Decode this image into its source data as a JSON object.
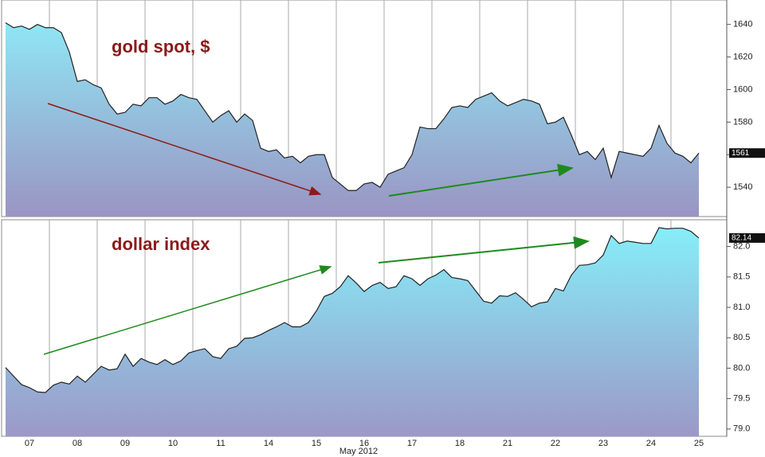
{
  "chart_data": {
    "type": "area",
    "xlabel": "May 2012",
    "categories": [
      null,
      null,
      null,
      "07",
      null,
      null,
      null,
      null,
      null,
      "08",
      null,
      null,
      null,
      null,
      null,
      "09",
      null,
      null,
      null,
      null,
      null,
      "10",
      null,
      null,
      null,
      null,
      null,
      "11",
      null,
      null,
      null,
      null,
      null,
      "14",
      null,
      null,
      null,
      null,
      null,
      "15",
      null,
      null,
      null,
      null,
      null,
      "16",
      null,
      null,
      null,
      null,
      null,
      "17",
      null,
      null,
      null,
      null,
      null,
      "18",
      null,
      null,
      null,
      null,
      null,
      "21",
      null,
      null,
      null,
      null,
      null,
      "22",
      null,
      null,
      null,
      null,
      null,
      "23",
      null,
      null,
      null,
      null,
      null,
      "24",
      null,
      null,
      null,
      null,
      null,
      "25",
      null,
      null
    ],
    "series": [
      {
        "name": "gold spot, $",
        "axis": "y",
        "color": "#222222",
        "last_label": "1561",
        "values": [
          1641,
          1638,
          1639,
          1637,
          1640,
          1638,
          1638,
          1635,
          1623,
          1605,
          1606,
          1603,
          1601,
          1591,
          1585,
          1586,
          1591,
          1590,
          1595,
          1595,
          1591,
          1593,
          1597,
          1595,
          1594,
          1587,
          1580,
          1584,
          1587,
          1580,
          1585,
          1581,
          1564,
          1562,
          1563,
          1558,
          1559,
          1555,
          1559,
          1560,
          1560,
          1546,
          1542,
          1538,
          1538,
          1542,
          1543,
          1540,
          1548,
          1550,
          1552,
          1560,
          1577,
          1576,
          1576,
          1582,
          1589,
          1590,
          1589,
          1594,
          1596,
          1598,
          1593,
          1590,
          1592,
          1594,
          1593,
          1591,
          1579,
          1580,
          1583,
          1572,
          1560,
          1562,
          1557,
          1564,
          1546,
          1562,
          1561,
          1560,
          1559,
          1564,
          1578,
          1567,
          1561,
          1559,
          1555,
          1561,
          null,
          null
        ]
      },
      {
        "name": "dollar index",
        "axis": "y2",
        "color": "#222222",
        "last_label": "82.14",
        "values": [
          80.01,
          79.87,
          79.73,
          79.68,
          79.61,
          79.6,
          79.72,
          79.77,
          79.74,
          79.87,
          79.77,
          79.9,
          80.03,
          79.97,
          79.99,
          80.23,
          80.03,
          80.16,
          80.1,
          80.06,
          80.14,
          80.06,
          80.12,
          80.25,
          80.29,
          80.32,
          80.19,
          80.16,
          80.32,
          80.36,
          80.49,
          80.5,
          80.55,
          80.62,
          80.68,
          80.75,
          80.68,
          80.68,
          80.75,
          80.94,
          81.18,
          81.23,
          81.34,
          81.52,
          81.4,
          81.26,
          81.36,
          81.41,
          81.31,
          81.34,
          81.52,
          81.47,
          81.36,
          81.47,
          81.53,
          81.62,
          81.49,
          81.47,
          81.44,
          81.27,
          81.1,
          81.07,
          81.19,
          81.18,
          81.24,
          81.13,
          81.01,
          81.07,
          81.09,
          81.31,
          81.27,
          81.53,
          81.69,
          81.7,
          81.73,
          81.86,
          82.18,
          82.05,
          82.09,
          82.07,
          82.05,
          82.05,
          82.31,
          82.29,
          82.3,
          82.3,
          82.25,
          82.14,
          null,
          null
        ]
      }
    ],
    "ylim": [
      1522,
      1655
    ],
    "yticks": [
      1540,
      1560,
      1580,
      1600,
      1620,
      1640
    ],
    "y2lim": [
      78.88,
      82.44
    ],
    "y2ticks": [
      {
        "value": 79,
        "label": "79.0"
      },
      79.5,
      {
        "value": 80,
        "label": "80.0"
      },
      80.5,
      {
        "value": 81,
        "label": "81.0"
      },
      81.5,
      {
        "value": 82,
        "label": "82.0"
      }
    ]
  }
}
